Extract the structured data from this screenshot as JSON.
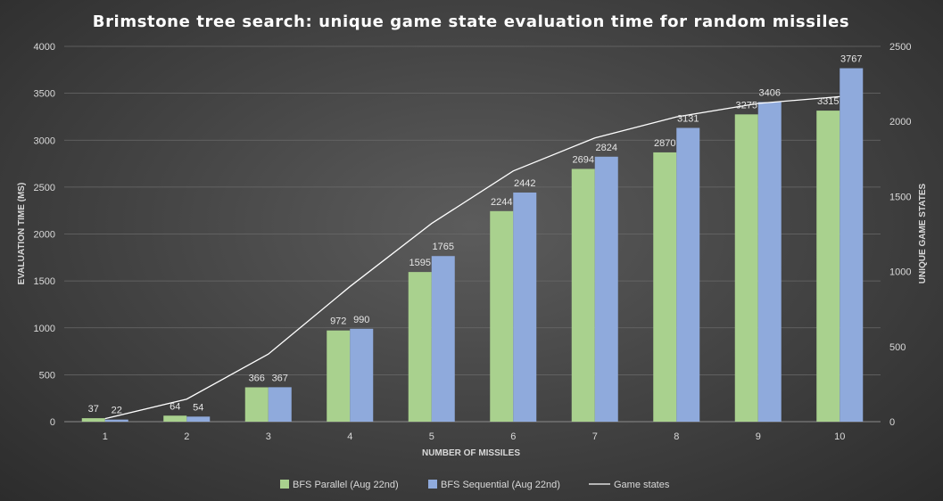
{
  "chart_data": {
    "type": "bar",
    "title": "Brimstone tree search: unique game state evaluation time for random missiles",
    "xlabel": "NUMBER OF MISSILES",
    "ylabel": "EVALUATION TIME (MS)",
    "y2label": "UNIQUE GAME STATES",
    "categories": [
      "1",
      "2",
      "3",
      "4",
      "5",
      "6",
      "7",
      "8",
      "9",
      "10"
    ],
    "ylim": [
      0,
      4000
    ],
    "yticks": [
      "0",
      "500",
      "1000",
      "1500",
      "2000",
      "2500",
      "3000",
      "3500",
      "4000"
    ],
    "y2lim": [
      0,
      2500
    ],
    "y2ticks": [
      "0",
      "500",
      "1000",
      "1500",
      "2000",
      "2500"
    ],
    "series": [
      {
        "name": "BFS Parallel (Aug 22nd)",
        "type": "bar",
        "axis": "left",
        "color": "#a9d18e",
        "values": [
          37,
          64,
          366,
          972,
          1595,
          2244,
          2694,
          2870,
          3275,
          3315
        ]
      },
      {
        "name": "BFS Sequential (Aug 22nd)",
        "type": "bar",
        "axis": "left",
        "color": "#8faadc",
        "values": [
          22,
          54,
          367,
          990,
          1765,
          2442,
          2824,
          3131,
          3406,
          3767
        ]
      },
      {
        "name": "Game states",
        "type": "line",
        "axis": "right",
        "color": "#ffffff",
        "values": [
          20,
          150,
          450,
          900,
          1320,
          1670,
          1890,
          2030,
          2120,
          2165
        ]
      }
    ],
    "grid": true,
    "legend": "bottom"
  }
}
